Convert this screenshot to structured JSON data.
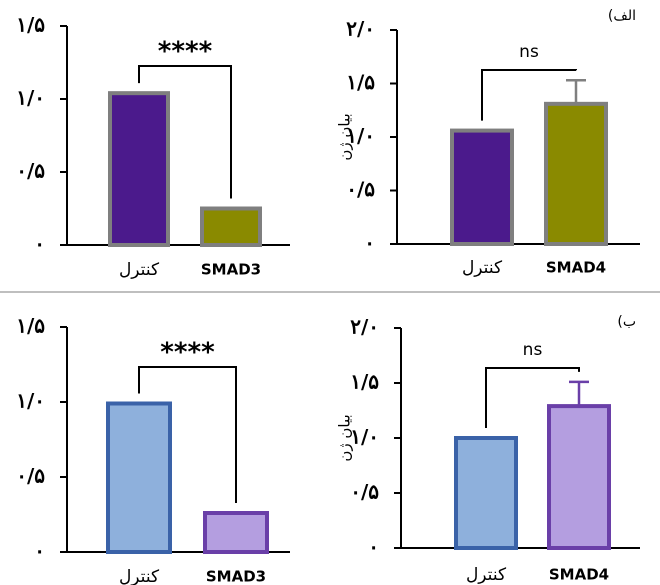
{
  "chart_data": [
    {
      "type": "bar",
      "categories": [
        "کنترل",
        "SMAD3"
      ],
      "values": [
        1.04,
        0.25
      ],
      "colors": [
        "#4b1a8c",
        "#8a8a00"
      ],
      "edgecolors": [
        "#7f7f7f",
        "#7f7f7f"
      ],
      "ylim": [
        0,
        1.5
      ],
      "yticks": [
        {
          "value": 0,
          "label": "۰"
        },
        {
          "value": 0.5,
          "label": "۰/۵"
        },
        {
          "value": 1.0,
          "label": "۱/۰"
        },
        {
          "value": 1.5,
          "label": "۱/۵"
        }
      ],
      "annotation": "****"
    },
    {
      "type": "bar",
      "categories": [
        "کنترل",
        "SMAD4"
      ],
      "values": [
        1.06,
        1.31
      ],
      "errors": [
        null,
        0.22
      ],
      "colors": [
        "#4b1a8c",
        "#8a8a00"
      ],
      "edgecolors": [
        "#7f7f7f",
        "#7f7f7f"
      ],
      "ylim": [
        0,
        2.0
      ],
      "yticks": [
        {
          "value": 0,
          "label": "۰"
        },
        {
          "value": 0.5,
          "label": "۰/۵"
        },
        {
          "value": 1.0,
          "label": "۱/۰"
        },
        {
          "value": 1.5,
          "label": "۱/۵"
        },
        {
          "value": 2.0,
          "label": "۲/۰"
        }
      ],
      "ylabel": "بیان ژن",
      "annotation": "ns",
      "panel_label": "(الف"
    },
    {
      "type": "bar",
      "categories": [
        "کنترل",
        "SMAD3"
      ],
      "values": [
        0.99,
        0.26
      ],
      "colors": [
        "#8eb0dc",
        "#b49ee0"
      ],
      "edgecolors": [
        "#3a62a8",
        "#6a3fa8"
      ],
      "ylim": [
        0,
        1.5
      ],
      "yticks": [
        {
          "value": 0,
          "label": "۰"
        },
        {
          "value": 0.5,
          "label": "۰/۵"
        },
        {
          "value": 1.0,
          "label": "۱/۰"
        },
        {
          "value": 1.5,
          "label": "۱/۵"
        }
      ],
      "annotation": "****"
    },
    {
      "type": "bar",
      "categories": [
        "کنترل",
        "SMAD4"
      ],
      "values": [
        1.0,
        1.29
      ],
      "errors": [
        null,
        0.22
      ],
      "colors": [
        "#8eb0dc",
        "#b49ee0"
      ],
      "edgecolors": [
        "#3a62a8",
        "#6a3fa8"
      ],
      "ylim": [
        0,
        2.0
      ],
      "yticks": [
        {
          "value": 0,
          "label": "۰"
        },
        {
          "value": 0.5,
          "label": "۰/۵"
        },
        {
          "value": 1.0,
          "label": "۱/۰"
        },
        {
          "value": 1.5,
          "label": "۱/۵"
        },
        {
          "value": 2.0,
          "label": "۲/۰"
        }
      ],
      "ylabel": "بیان ژن",
      "annotation": "ns",
      "panel_label": "(ب"
    }
  ]
}
